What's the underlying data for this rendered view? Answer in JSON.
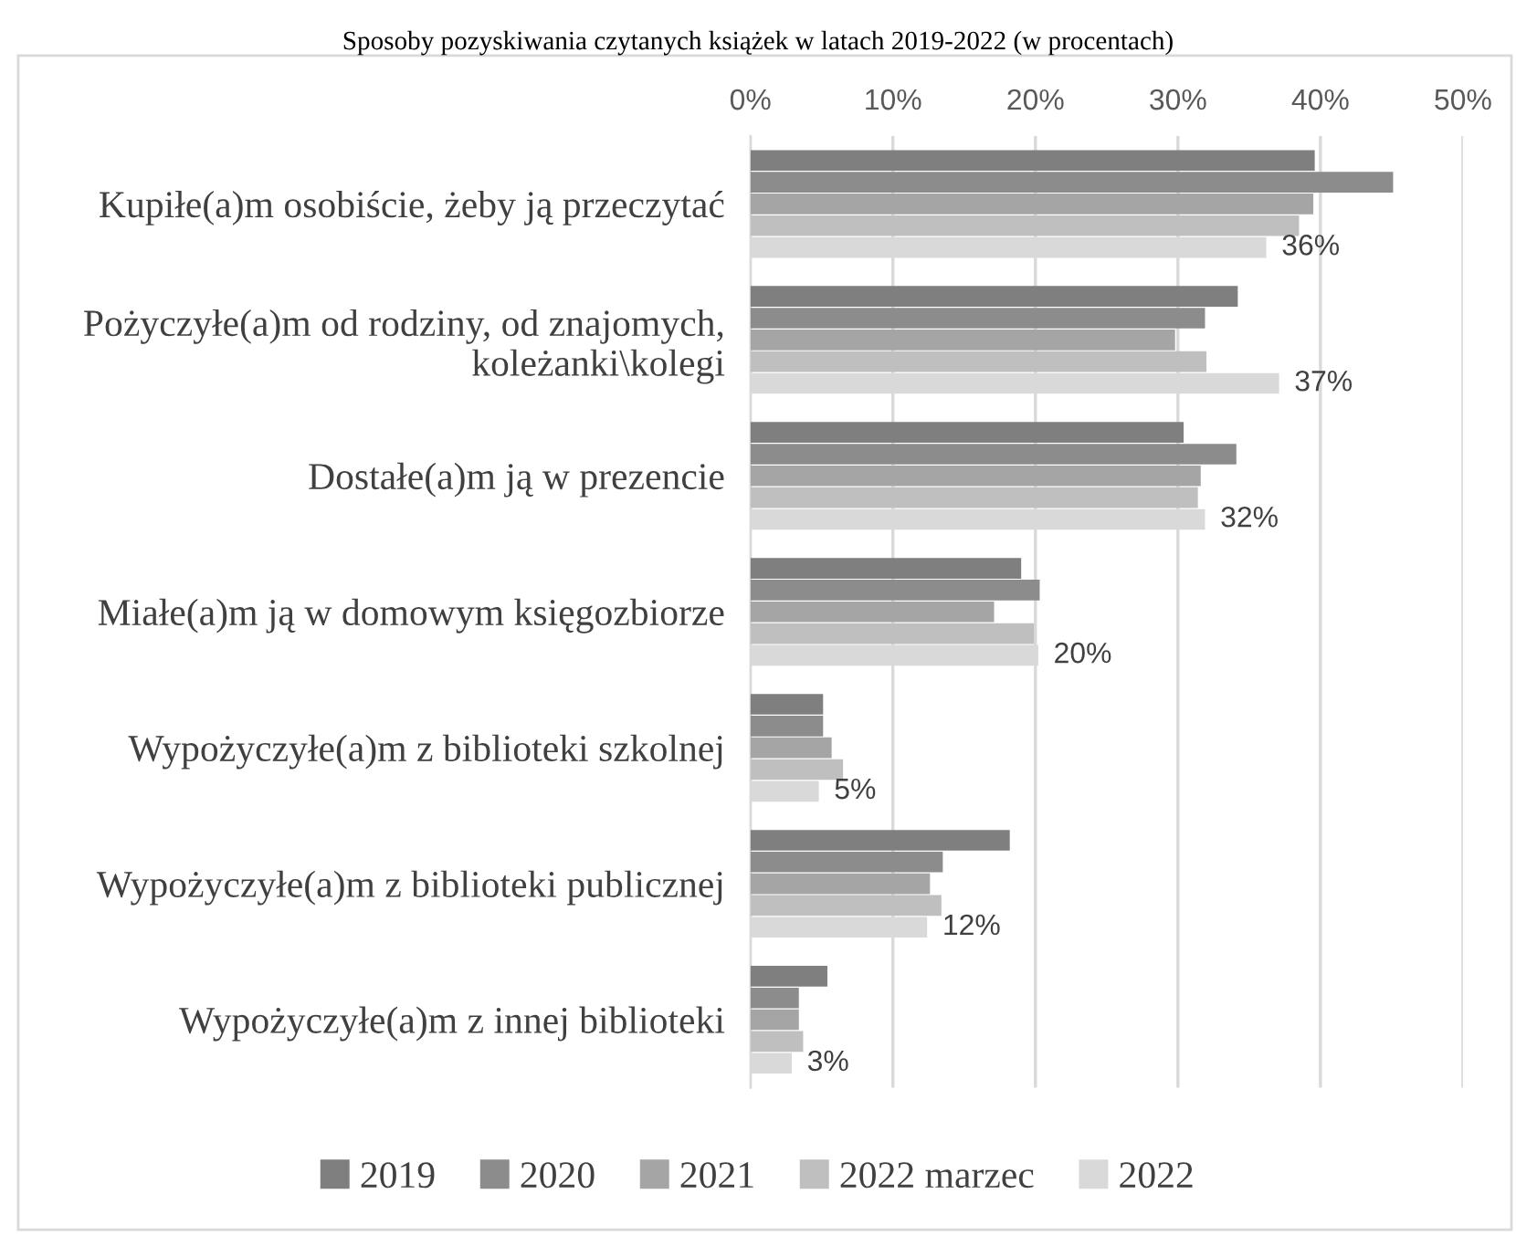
{
  "chart_data": {
    "type": "bar",
    "orientation": "horizontal",
    "title": "Sposoby pozyskiwania czytanych książek w latach 2019-2022 (w procentach)",
    "categories": [
      "Kupiłe(a)m osobiście, żeby ją przeczytać",
      "Pożyczyłe(a)m od rodziny, od znajomych, koleżanki\\kolegi",
      "Dostałe(a)m ją w prezencie",
      "Miałe(a)m ją w domowym księgozbiorze",
      "Wypożyczyłe(a)m z biblioteki szkolnej",
      "Wypożyczyłe(a)m z biblioteki publicznej",
      "Wypożyczyłe(a)m z innej biblioteki"
    ],
    "series": [
      {
        "name": "2019",
        "color": "#7f7f7f",
        "values": [
          39.6,
          34.2,
          30.4,
          19.0,
          5.1,
          18.2,
          5.4
        ]
      },
      {
        "name": "2020",
        "color": "#8c8c8c",
        "values": [
          45.1,
          31.9,
          34.1,
          20.3,
          5.1,
          13.5,
          3.4
        ]
      },
      {
        "name": "2021",
        "color": "#a5a5a5",
        "values": [
          39.5,
          29.8,
          31.6,
          17.1,
          5.7,
          12.6,
          3.4
        ]
      },
      {
        "name": "2022 marzec",
        "color": "#bfbfbf",
        "values": [
          38.5,
          32.0,
          31.4,
          19.9,
          6.5,
          13.4,
          3.7
        ]
      },
      {
        "name": "2022",
        "color": "#d9d9d9",
        "values": [
          36.2,
          37.1,
          31.9,
          20.2,
          4.8,
          12.4,
          2.9
        ],
        "value_labels": [
          "36%",
          "37%",
          "32%",
          "20%",
          "5%",
          "12%",
          "3%"
        ]
      }
    ],
    "xlim": [
      0,
      50
    ],
    "xticks": [
      {
        "value": 0,
        "label": "0%"
      },
      {
        "value": 10,
        "label": "10%"
      },
      {
        "value": 20,
        "label": "20%"
      },
      {
        "value": 30,
        "label": "30%"
      },
      {
        "value": 40,
        "label": "40%"
      },
      {
        "value": 50,
        "label": "50%"
      }
    ],
    "grid": "x",
    "legend": "bottom"
  }
}
